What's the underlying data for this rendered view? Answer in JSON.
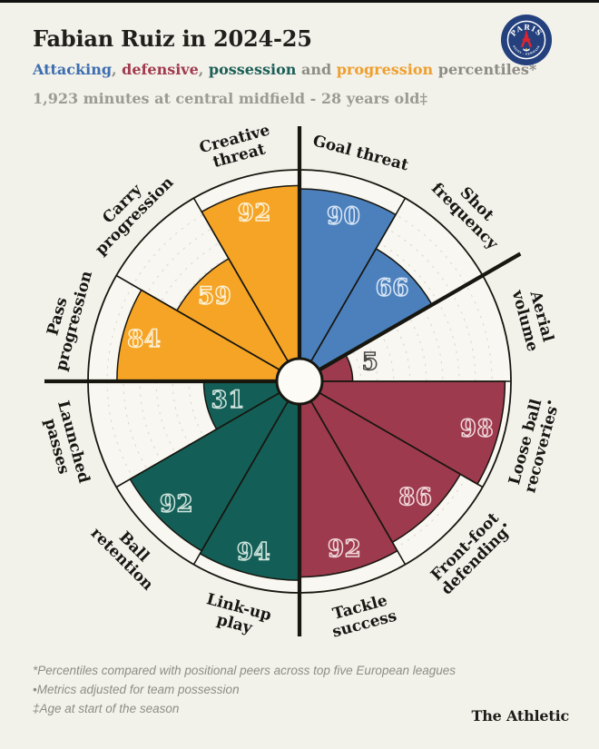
{
  "header": {
    "title": "Fabian Ruiz in 2024-25",
    "subtitle_segments": [
      {
        "text": "Attacking",
        "color": "#3c6eb0"
      },
      {
        "text": ", ",
        "color": "#8e8c85"
      },
      {
        "text": "defensive",
        "color": "#a23a4e"
      },
      {
        "text": ", ",
        "color": "#8e8c85"
      },
      {
        "text": "possession",
        "color": "#1c6058"
      },
      {
        "text": " and ",
        "color": "#8e8c85"
      },
      {
        "text": "progression",
        "color": "#ef9f2d"
      },
      {
        "text": " percentiles*",
        "color": "#8e8c85"
      }
    ],
    "meta": "1,923 minutes at central midfield - 28 years old‡",
    "club_badge": {
      "name": "Paris Saint-Germain crest",
      "top_text": "PARIS",
      "bottom_text": "SAINT - GERMAIN",
      "navy": "#24417e",
      "red": "#df2430",
      "gold": "#d9a93f",
      "white": "#ffffff"
    }
  },
  "chart_data": {
    "type": "polar_bar",
    "description": "Percentile pizza chart, 12 slices of 30 degrees starting at 12 o'clock going clockwise",
    "scale": {
      "min": 0,
      "max": 100
    },
    "groups": {
      "attacking": {
        "label": "Attacking",
        "color": "#4b80bc",
        "value_color": "#d9e6f6"
      },
      "defensive": {
        "label": "Defensive",
        "color": "#9d3a4e",
        "value_color": "#f0d9db"
      },
      "possession": {
        "label": "Possession",
        "color": "#135f57",
        "value_color": "#cfe4dd"
      },
      "progression": {
        "label": "Progression",
        "color": "#f5a425",
        "value_color": "#fbf0d4"
      }
    },
    "small_value_color": "#4b4a46",
    "metrics": [
      {
        "label_lines": [
          "Goal threat"
        ],
        "value": 90,
        "group": "attacking"
      },
      {
        "label_lines": [
          "Shot",
          "frequency"
        ],
        "value": 66,
        "group": "attacking"
      },
      {
        "label_lines": [
          "Aerial",
          "volume"
        ],
        "value": 5,
        "group": "defensive"
      },
      {
        "label_lines": [
          "Loose ball",
          "recoveries•"
        ],
        "value": 98,
        "group": "defensive"
      },
      {
        "label_lines": [
          "Front-foot",
          "defending•"
        ],
        "value": 86,
        "group": "defensive"
      },
      {
        "label_lines": [
          "Tackle",
          "success"
        ],
        "value": 92,
        "group": "defensive"
      },
      {
        "label_lines": [
          "Link-up",
          "play"
        ],
        "value": 94,
        "group": "possession"
      },
      {
        "label_lines": [
          "Ball",
          "retention"
        ],
        "value": 92,
        "group": "possession"
      },
      {
        "label_lines": [
          "Launched",
          "passes"
        ],
        "value": 31,
        "group": "possession"
      },
      {
        "label_lines": [
          "Pass",
          "progression"
        ],
        "value": 84,
        "group": "progression"
      },
      {
        "label_lines": [
          "Carry",
          "progression"
        ],
        "value": 59,
        "group": "progression"
      },
      {
        "label_lines": [
          "Creative",
          "threat"
        ],
        "value": 92,
        "group": "progression"
      }
    ],
    "style": {
      "inner_face": "#f8f7f1",
      "grid_color": "#dcdad0",
      "line_color": "#17160f",
      "label_color": "#181713",
      "hole_fill": "#fcfbf6"
    }
  },
  "footnotes": [
    "*Percentiles compared with positional peers across top five European leagues",
    "•Metrics adjusted for team possession",
    "‡Age at start of the season"
  ],
  "footer": {
    "brand": "The Athletic"
  }
}
